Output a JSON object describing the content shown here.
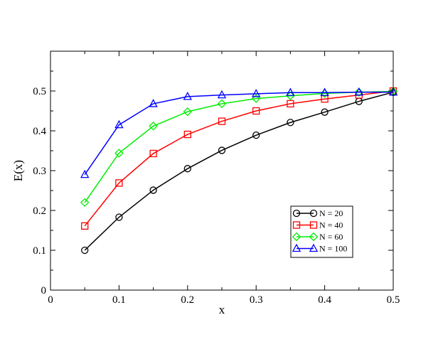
{
  "chart_data": {
    "type": "line",
    "title": "",
    "xlabel": "x",
    "ylabel": "E(x)",
    "xlim": [
      0,
      0.5
    ],
    "ylim": [
      0,
      0.6
    ],
    "xticks": [
      0,
      0.1,
      0.2,
      0.3,
      0.4,
      0.5
    ],
    "xtick_labels": [
      "0",
      "0.1",
      "0.2",
      "0.3",
      "0.4",
      "0.5"
    ],
    "yticks": [
      0,
      0.1,
      0.2,
      0.3,
      0.4,
      0.5
    ],
    "ytick_labels": [
      "0",
      "0.1",
      "0.2",
      "0.3",
      "0.4",
      "0.5"
    ],
    "grid": false,
    "legend_position": "lower-right",
    "x": [
      0.05,
      0.1,
      0.15,
      0.2,
      0.25,
      0.3,
      0.35,
      0.4,
      0.45,
      0.5
    ],
    "series": [
      {
        "name": "N = 20",
        "color": "#000000",
        "marker": "circle",
        "values": [
          0.1,
          0.183,
          0.251,
          0.305,
          0.351,
          0.389,
          0.421,
          0.447,
          0.474,
          0.497
        ]
      },
      {
        "name": "N = 40",
        "color": "#ff0000",
        "marker": "square",
        "values": [
          0.161,
          0.269,
          0.343,
          0.391,
          0.424,
          0.45,
          0.468,
          0.48,
          0.49,
          0.5
        ]
      },
      {
        "name": "N = 60",
        "color": "#00ee00",
        "marker": "diamond",
        "values": [
          0.22,
          0.344,
          0.412,
          0.448,
          0.468,
          0.481,
          0.488,
          0.494,
          0.497,
          0.499
        ]
      },
      {
        "name": "N = 100",
        "color": "#0000ff",
        "marker": "triangle",
        "values": [
          0.29,
          0.415,
          0.468,
          0.486,
          0.49,
          0.493,
          0.496,
          0.496,
          0.497,
          0.497
        ]
      }
    ]
  }
}
